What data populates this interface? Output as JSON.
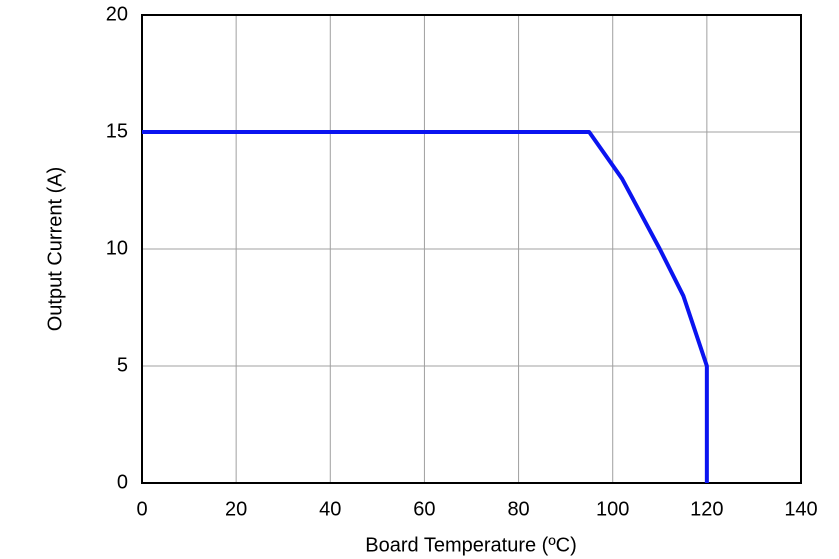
{
  "chart_data": {
    "type": "line",
    "x_label": "Board Temperature (ºC)",
    "y_label": "Output Current (A)",
    "xlim": [
      0,
      140
    ],
    "xticks": [
      0,
      20,
      40,
      60,
      80,
      100,
      120,
      140
    ],
    "ylim": [
      0,
      20
    ],
    "yticks": [
      0,
      5,
      10,
      15,
      20
    ],
    "grid": true,
    "series": [
      {
        "color": "#0a14f0",
        "x": [
          0,
          95,
          102,
          110,
          115,
          120,
          120
        ],
        "values": [
          15,
          15,
          13,
          10,
          8,
          5,
          0
        ]
      }
    ]
  }
}
